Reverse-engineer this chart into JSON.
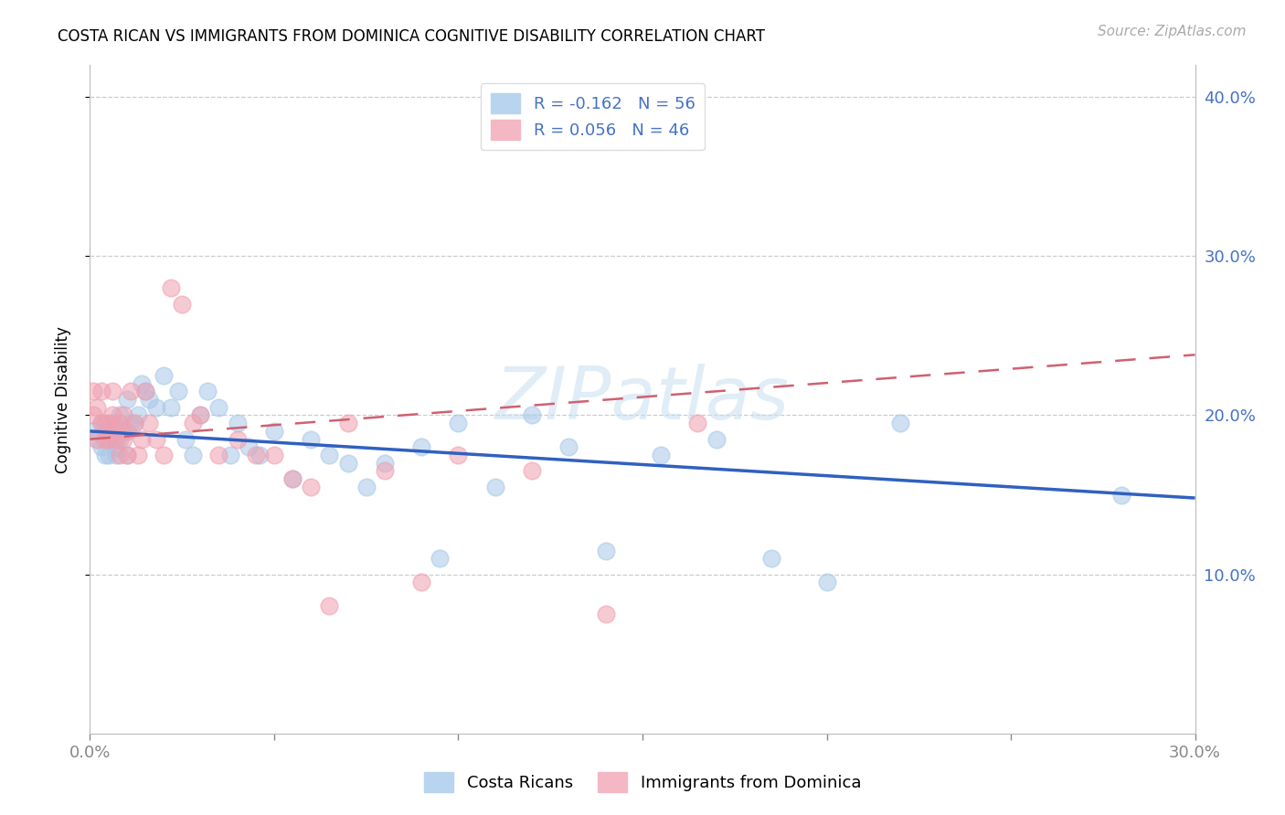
{
  "title": "COSTA RICAN VS IMMIGRANTS FROM DOMINICA COGNITIVE DISABILITY CORRELATION CHART",
  "source": "Source: ZipAtlas.com",
  "ylabel": "Cognitive Disability",
  "blue_color": "#a8c8e8",
  "pink_color": "#f0a0b0",
  "blue_line_color": "#3060c0",
  "pink_line_color": "#d06070",
  "blue_scatter_x": [
    0.001,
    0.002,
    0.003,
    0.003,
    0.004,
    0.004,
    0.005,
    0.005,
    0.006,
    0.006,
    0.007,
    0.007,
    0.008,
    0.008,
    0.009,
    0.01,
    0.01,
    0.011,
    0.012,
    0.013,
    0.014,
    0.015,
    0.016,
    0.018,
    0.02,
    0.022,
    0.024,
    0.026,
    0.028,
    0.03,
    0.032,
    0.035,
    0.038,
    0.04,
    0.043,
    0.046,
    0.05,
    0.055,
    0.06,
    0.065,
    0.07,
    0.075,
    0.08,
    0.09,
    0.095,
    0.1,
    0.11,
    0.12,
    0.13,
    0.14,
    0.155,
    0.17,
    0.185,
    0.2,
    0.22,
    0.28
  ],
  "blue_scatter_y": [
    0.19,
    0.185,
    0.195,
    0.18,
    0.175,
    0.19,
    0.185,
    0.175,
    0.195,
    0.185,
    0.18,
    0.175,
    0.2,
    0.185,
    0.19,
    0.21,
    0.175,
    0.195,
    0.195,
    0.2,
    0.22,
    0.215,
    0.21,
    0.205,
    0.225,
    0.205,
    0.215,
    0.185,
    0.175,
    0.2,
    0.215,
    0.205,
    0.175,
    0.195,
    0.18,
    0.175,
    0.19,
    0.16,
    0.185,
    0.175,
    0.17,
    0.155,
    0.17,
    0.18,
    0.11,
    0.195,
    0.155,
    0.2,
    0.18,
    0.115,
    0.175,
    0.185,
    0.11,
    0.095,
    0.195,
    0.15
  ],
  "pink_scatter_x": [
    0.001,
    0.001,
    0.002,
    0.002,
    0.003,
    0.003,
    0.004,
    0.004,
    0.005,
    0.005,
    0.006,
    0.006,
    0.007,
    0.007,
    0.008,
    0.008,
    0.009,
    0.009,
    0.01,
    0.01,
    0.011,
    0.012,
    0.013,
    0.014,
    0.015,
    0.016,
    0.018,
    0.02,
    0.022,
    0.025,
    0.028,
    0.03,
    0.035,
    0.04,
    0.045,
    0.05,
    0.055,
    0.06,
    0.065,
    0.07,
    0.08,
    0.09,
    0.1,
    0.12,
    0.14,
    0.165
  ],
  "pink_scatter_y": [
    0.215,
    0.2,
    0.205,
    0.185,
    0.195,
    0.215,
    0.195,
    0.185,
    0.195,
    0.185,
    0.215,
    0.2,
    0.19,
    0.185,
    0.195,
    0.175,
    0.2,
    0.185,
    0.19,
    0.175,
    0.215,
    0.195,
    0.175,
    0.185,
    0.215,
    0.195,
    0.185,
    0.175,
    0.28,
    0.27,
    0.195,
    0.2,
    0.175,
    0.185,
    0.175,
    0.175,
    0.16,
    0.155,
    0.08,
    0.195,
    0.165,
    0.095,
    0.175,
    0.165,
    0.075,
    0.195
  ],
  "blue_line_x": [
    0.0,
    0.3
  ],
  "blue_line_y": [
    0.19,
    0.148
  ],
  "pink_line_x": [
    0.0,
    0.3
  ],
  "pink_line_y": [
    0.185,
    0.238
  ],
  "xlim": [
    0.0,
    0.3
  ],
  "ylim": [
    0.0,
    0.42
  ],
  "yticks": [
    0.1,
    0.2,
    0.3,
    0.4
  ],
  "ytick_labels": [
    "10.0%",
    "20.0%",
    "30.0%",
    "40.0%"
  ],
  "xticks": [
    0.0,
    0.05,
    0.1,
    0.15,
    0.2,
    0.25,
    0.3
  ],
  "xtick_labels_show": [
    "0.0%",
    "",
    "",
    "",
    "",
    "",
    "30.0%"
  ],
  "watermark": "ZIPatlas",
  "legend1_label": "R = -0.162   N = 56",
  "legend2_label": "R = 0.056   N = 46",
  "bottom_legend1": "Costa Ricans",
  "bottom_legend2": "Immigrants from Dominica"
}
